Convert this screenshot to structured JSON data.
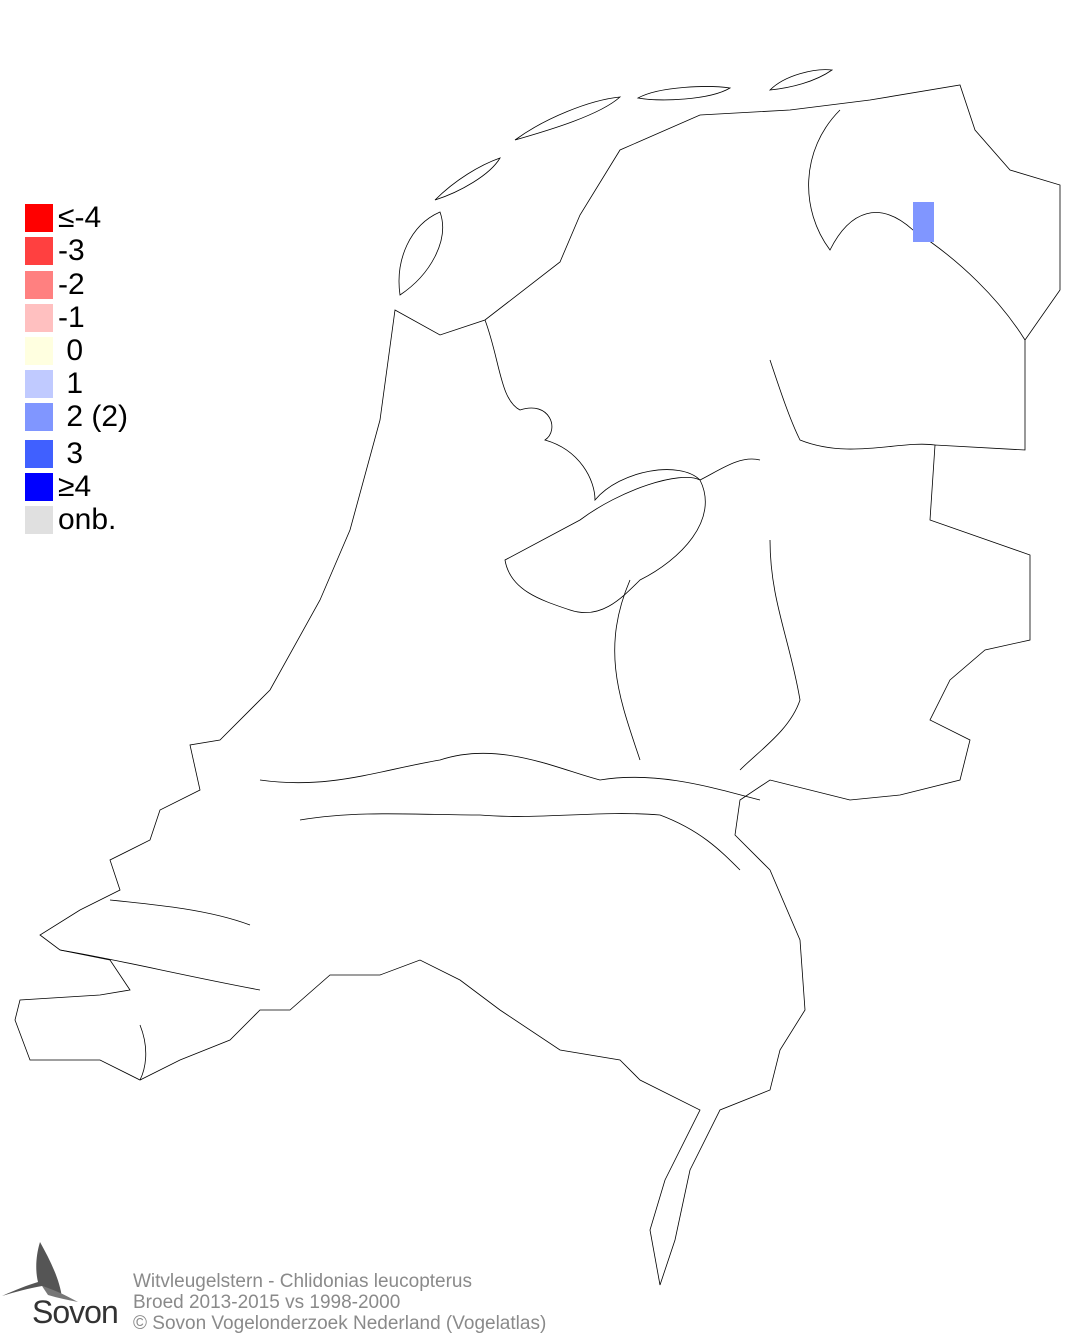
{
  "legend": {
    "items": [
      {
        "label": "≤-4",
        "color": "#ff0000"
      },
      {
        "label": "-3",
        "color": "#ff4040"
      },
      {
        "label": "-2",
        "color": "#ff8080"
      },
      {
        "label": "-1",
        "color": "#ffc0c0"
      },
      {
        "label": " 0",
        "color": "#ffffe0"
      },
      {
        "label": " 1",
        "color": "#c0caff"
      },
      {
        "label": " 2 (2)",
        "color": "#8096ff"
      },
      {
        "label": " 3",
        "color": "#4060ff"
      },
      {
        "label": "≥4",
        "color": "#0000ff"
      },
      {
        "label": "onb.",
        "color": "#e0e0e0"
      }
    ]
  },
  "map": {
    "region": "Netherlands",
    "outline_color": "#000000",
    "highlighted_cells": [
      {
        "class": "2",
        "color": "#8096ff"
      }
    ]
  },
  "footer": {
    "title": "Witvleugelstern - Chlidonias leucopterus",
    "subtitle": "Broed 2013-2015 vs 1998-2000",
    "copyright": "© Sovon Vogelonderzoek Nederland (Vogelatlas)"
  },
  "logo": {
    "text": "Sovon",
    "icon": "swallow-icon"
  }
}
